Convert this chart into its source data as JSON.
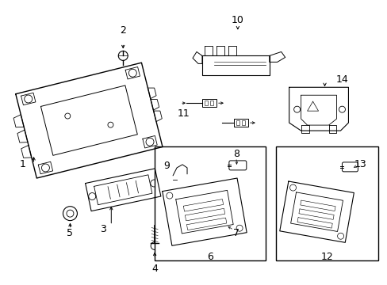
{
  "bg_color": "#ffffff",
  "line_color": "#000000",
  "fig_width": 4.89,
  "fig_height": 3.6,
  "dpi": 100,
  "label_fontsize": 9
}
